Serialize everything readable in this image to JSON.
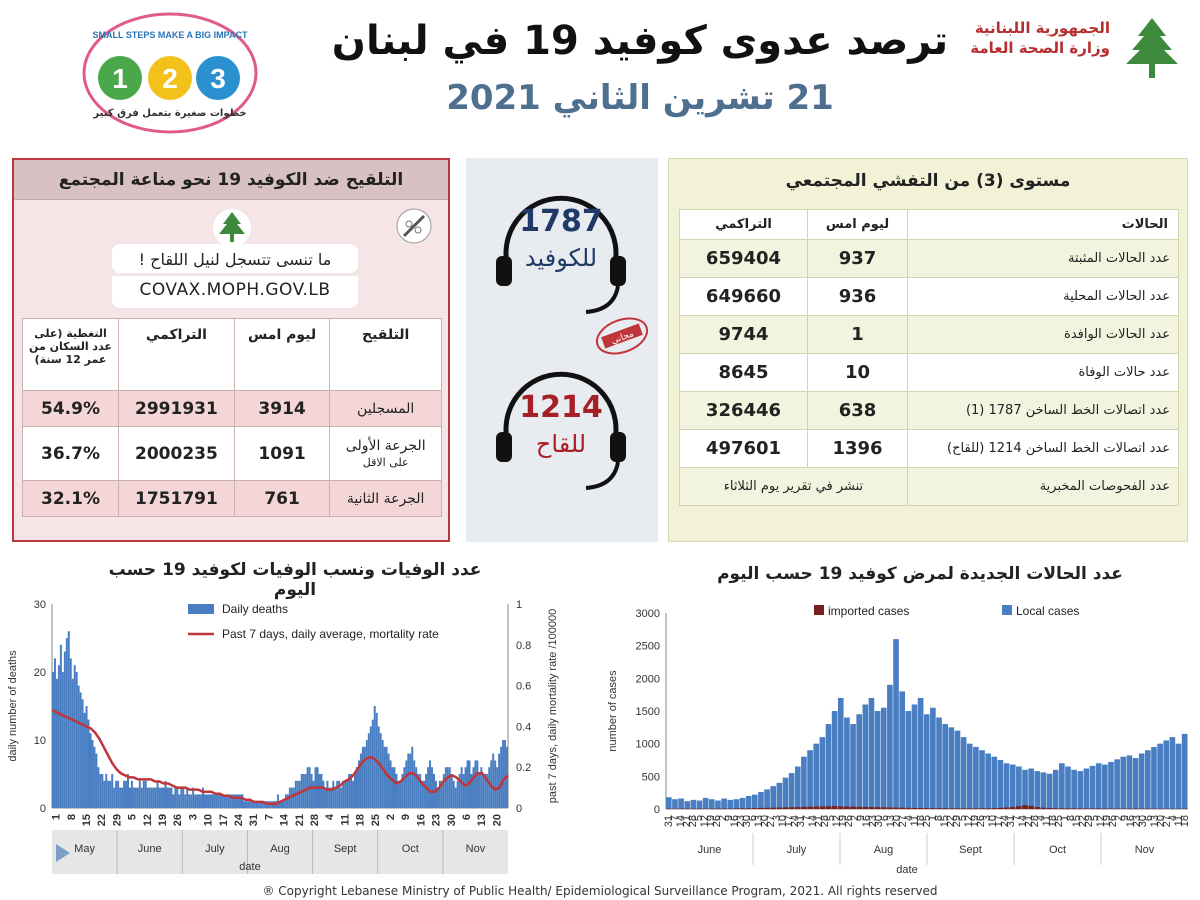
{
  "header": {
    "title": "ترصد عدوى كوفيد 19 في لبنان",
    "date": "21 تشرين الثاني 2021",
    "ministry_line1": "الجمهورية اللبنانية",
    "ministry_line2": "وزارة الصحة العامة",
    "badge_title": "SMALL STEPS MAKE A BIG IMPACT",
    "badge_arabic": "خطوات صغيرة بتعمل فرق كبير",
    "badge_numbers": [
      "1",
      "2",
      "3"
    ]
  },
  "vaccination": {
    "title": "التلقيح ضد الكوفيد 19  نحو مناعة المجتمع",
    "reminder": "ما تنسى تتسجل لنيل اللقاح !",
    "url": "COVAX.MOPH.GOV.LB",
    "headers": [
      "التلقيح",
      "ليوم امس",
      "التراكمي",
      "التغطية (على عدد السكان من عمر 12 سنة)"
    ],
    "rows": [
      {
        "label": "المسجلين",
        "sublabel": "",
        "yesterday": "3914",
        "cumulative": "2991931",
        "coverage": "54.9%"
      },
      {
        "label": "الجرعة الأولى",
        "sublabel": "على الاقل",
        "yesterday": "1091",
        "cumulative": "2000235",
        "coverage": "36.7%"
      },
      {
        "label": "الجرعة الثانية",
        "sublabel": "",
        "yesterday": "761",
        "cumulative": "1751791",
        "coverage": "32.1%"
      }
    ]
  },
  "hotlines": {
    "covid_number": "1787",
    "covid_label": "للكوفيد",
    "vaccine_number": "1214",
    "vaccine_label": "للقاح",
    "stamp_text": "مجاني"
  },
  "cases": {
    "title": "مستوى (3) من التفشي المجتمعي",
    "headers": [
      "الحالات",
      "ليوم امس",
      "التراكمي"
    ],
    "rows": [
      {
        "label": "عدد الحالات المثبتة",
        "yesterday": "937",
        "cumulative": "659404"
      },
      {
        "label": "عدد الحالات المحلية",
        "yesterday": "936",
        "cumulative": "649660"
      },
      {
        "label": "عدد الحالات الوافدة",
        "yesterday": "1",
        "cumulative": "9744"
      },
      {
        "label": "عدد حالات الوفاة",
        "yesterday": "10",
        "cumulative": "8645"
      },
      {
        "label": "عدد اتصالات الخط الساخن 1787  (1)",
        "yesterday": "638",
        "cumulative": "326446"
      },
      {
        "label": "عدد اتصالات الخط الساخن 1214 (للقاح)",
        "yesterday": "1396",
        "cumulative": "497601"
      }
    ],
    "lab_label": "عدد الفحوصات المخبرية",
    "lab_note": "تنشر في تقرير يوم الثلاثاء"
  },
  "chart_data": [
    {
      "type": "bar",
      "title": "عدد الوفيات ونسب الوفيات لكوفيد 19 حسب اليوم",
      "xlabel": "date",
      "ylabel": "daily number of deaths",
      "y2label": "past 7 days, daily mortality rate /100000",
      "ylim": [
        0,
        30
      ],
      "y2lim": [
        0,
        1
      ],
      "yticks": [
        0,
        10,
        20,
        30
      ],
      "y2ticks": [
        0,
        0.2,
        0.4,
        0.6,
        0.8,
        1
      ],
      "x_tick_labels": [
        "1",
        "8",
        "15",
        "22",
        "29",
        "5",
        "12",
        "19",
        "26",
        "3",
        "10",
        "17",
        "24",
        "31",
        "7",
        "14",
        "21",
        "28",
        "4",
        "11",
        "18",
        "25",
        "2",
        "9",
        "16",
        "23",
        "30",
        "6",
        "13",
        "20"
      ],
      "months": [
        "May",
        "June",
        "July",
        "Aug",
        "Sept",
        "Oct",
        "Nov"
      ],
      "legend_placement": "top-center",
      "series": [
        {
          "name": "Daily deaths",
          "color": "#4a7ec2",
          "kind": "bar",
          "values": [
            20,
            22,
            19,
            21,
            24,
            20,
            23,
            25,
            26,
            22,
            19,
            21,
            20,
            18,
            17,
            16,
            14,
            15,
            13,
            11,
            10,
            9,
            8,
            6,
            5,
            5,
            4,
            5,
            4,
            4,
            5,
            3,
            4,
            4,
            3,
            3,
            4,
            4,
            5,
            3,
            4,
            3,
            3,
            3,
            4,
            3,
            4,
            4,
            3,
            3,
            3,
            3,
            3,
            4,
            3,
            3,
            3,
            4,
            3,
            3,
            3,
            2,
            3,
            3,
            2,
            3,
            3,
            2,
            3,
            2,
            2,
            3,
            2,
            2,
            2,
            2,
            3,
            2,
            2,
            2,
            2,
            2,
            2,
            2,
            2,
            2,
            2,
            2,
            2,
            2,
            2,
            2,
            2,
            2,
            2,
            2,
            2,
            1,
            1,
            1,
            1,
            1,
            1,
            1,
            1,
            1,
            1,
            1,
            1,
            1,
            1,
            1,
            1,
            1,
            2,
            1,
            1,
            1,
            2,
            2,
            3,
            3,
            3,
            4,
            4,
            4,
            5,
            5,
            5,
            6,
            6,
            5,
            4,
            6,
            6,
            5,
            5,
            4,
            3,
            4,
            3,
            3,
            4,
            3,
            4,
            4,
            3,
            4,
            4,
            4,
            5,
            5,
            4,
            5,
            6,
            7,
            8,
            9,
            9,
            10,
            11,
            12,
            13,
            15,
            14,
            12,
            11,
            10,
            9,
            9,
            8,
            7,
            6,
            6,
            5,
            4,
            4,
            5,
            6,
            7,
            8,
            8,
            9,
            7,
            6,
            5,
            5,
            4,
            4,
            5,
            6,
            7,
            6,
            5,
            4,
            3,
            4,
            4,
            5,
            6,
            6,
            6,
            5,
            4,
            3,
            4,
            5,
            6,
            5,
            6,
            7,
            7,
            5,
            6,
            7,
            7,
            5,
            6,
            5,
            5,
            5,
            6,
            7,
            8,
            7,
            6,
            8,
            9,
            10,
            10,
            9
          ]
        },
        {
          "name": "Past 7 days, daily average, mortality rate",
          "color": "#c0353a",
          "kind": "line",
          "values": [
            0.48,
            0.47,
            0.46,
            0.45,
            0.44,
            0.43,
            0.42,
            0.41,
            0.4,
            0.39,
            0.37,
            0.34,
            0.3,
            0.26,
            0.22,
            0.19,
            0.17,
            0.16,
            0.15,
            0.15,
            0.14,
            0.14,
            0.14,
            0.14,
            0.13,
            0.13,
            0.12,
            0.12,
            0.11,
            0.1,
            0.1,
            0.1,
            0.09,
            0.09,
            0.09,
            0.08,
            0.08,
            0.08,
            0.07,
            0.07,
            0.06,
            0.06,
            0.05,
            0.05,
            0.05,
            0.04,
            0.04,
            0.03,
            0.03,
            0.03,
            0.02,
            0.02,
            0.02,
            0.03,
            0.04,
            0.05,
            0.06,
            0.07,
            0.08,
            0.09,
            0.1,
            0.1,
            0.1,
            0.1,
            0.09,
            0.09,
            0.1,
            0.11,
            0.13,
            0.14,
            0.16,
            0.19,
            0.22,
            0.24,
            0.25,
            0.24,
            0.22,
            0.19,
            0.16,
            0.14,
            0.12,
            0.13,
            0.15,
            0.17,
            0.17,
            0.15,
            0.12,
            0.1,
            0.08,
            0.08,
            0.1,
            0.13,
            0.15,
            0.16,
            0.15,
            0.13,
            0.11,
            0.12,
            0.15,
            0.17,
            0.17,
            0.14,
            0.11,
            0.09,
            0.1,
            0.14,
            0.16
          ]
        }
      ]
    },
    {
      "type": "bar",
      "title": "عدد الحالات الجديدة لمرض كوفيد 19 حسب اليوم",
      "xlabel": "date",
      "ylabel": "number of cases",
      "ylim": [
        0,
        3000
      ],
      "yticks": [
        0,
        500,
        1000,
        1500,
        2000,
        2500,
        3000
      ],
      "x_tick_labels": [
        "31",
        "7",
        "14",
        "21",
        "28",
        "5",
        "12",
        "19",
        "26",
        "2",
        "9",
        "16",
        "23",
        "30",
        "6",
        "13",
        "20",
        "27",
        "3",
        "10",
        "17",
        "24",
        "31",
        "7",
        "14",
        "21",
        "28",
        "5",
        "12",
        "19",
        "26",
        "2",
        "9",
        "16",
        "23",
        "30",
        "6",
        "13",
        "20",
        "27",
        "4",
        "11",
        "18",
        "25",
        "1",
        "8",
        "15",
        "22",
        "29",
        "5",
        "12",
        "19",
        "26",
        "3",
        "10",
        "17",
        "24",
        "31",
        "7",
        "14",
        "21",
        "28",
        "4",
        "11",
        "18",
        "25",
        "1",
        "8",
        "15",
        "22",
        "29",
        "5",
        "12",
        "19",
        "26",
        "2",
        "9",
        "16",
        "23",
        "30",
        "6",
        "13",
        "20",
        "27",
        "4",
        "11",
        "18"
      ],
      "months": [
        "June",
        "July",
        "Aug",
        "Sept",
        "Oct",
        "Nov"
      ],
      "legend_placement": "top",
      "series": [
        {
          "name": "imported cases",
          "color": "#7a1f1f",
          "kind": "bar",
          "values": [
            5,
            4,
            6,
            5,
            4,
            6,
            5,
            7,
            6,
            8,
            7,
            9,
            10,
            12,
            14,
            16,
            18,
            20,
            22,
            25,
            28,
            30,
            32,
            35,
            38,
            40,
            42,
            45,
            40,
            38,
            36,
            34,
            32,
            30,
            28,
            26,
            24,
            22,
            20,
            18,
            16,
            15,
            14,
            13,
            12,
            12,
            11,
            11,
            10,
            10,
            10,
            11,
            12,
            14,
            18,
            22,
            30,
            42,
            60,
            48,
            30,
            20,
            15,
            12,
            10,
            10,
            9,
            9,
            8,
            8,
            8,
            7,
            7,
            7,
            6,
            6,
            6,
            5,
            5,
            5,
            5,
            4,
            4,
            4,
            4
          ]
        },
        {
          "name": "Local cases",
          "color": "#4a7ec2",
          "kind": "bar",
          "values": [
            180,
            150,
            160,
            120,
            140,
            130,
            170,
            150,
            130,
            160,
            140,
            150,
            170,
            200,
            220,
            260,
            300,
            350,
            400,
            480,
            550,
            650,
            800,
            900,
            1000,
            1100,
            1300,
            1500,
            1700,
            1400,
            1300,
            1450,
            1600,
            1700,
            1500,
            1550,
            1900,
            2600,
            1800,
            1500,
            1600,
            1700,
            1450,
            1550,
            1400,
            1300,
            1250,
            1200,
            1100,
            1000,
            950,
            900,
            850,
            800,
            750,
            700,
            680,
            650,
            600,
            620,
            580,
            560,
            540,
            600,
            700,
            650,
            600,
            580,
            620,
            660,
            700,
            680,
            720,
            760,
            800,
            820,
            780,
            850,
            900,
            950,
            1000,
            1050,
            1100,
            1000,
            1150
          ]
        }
      ]
    }
  ],
  "footer": {
    "copyright": "® Copyright Lebanese Ministry of Public Health/ Epidemiological Surveillance Program, 2021. All rights reserved"
  }
}
